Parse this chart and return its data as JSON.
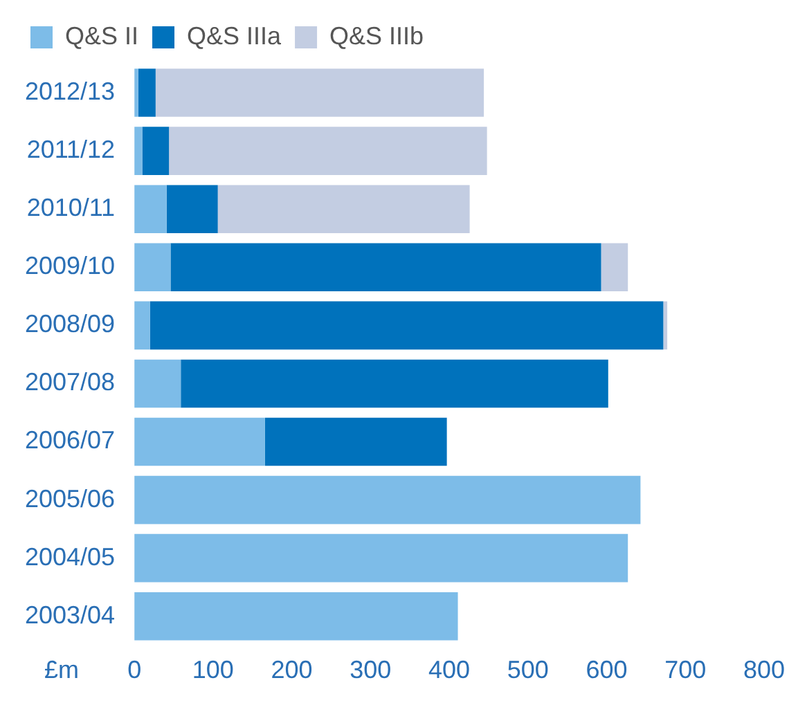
{
  "chart_data": {
    "type": "bar",
    "orientation": "horizontal",
    "stacked": true,
    "xlabel": "£m",
    "categories": [
      "2012/13",
      "2011/12",
      "2010/11",
      "2009/10",
      "2008/09",
      "2007/08",
      "2006/07",
      "2005/06",
      "2004/05",
      "2003/04"
    ],
    "series": [
      {
        "name": "Q&S II",
        "color": "#7dbce8",
        "values": [
          5,
          10,
          41,
          46,
          20,
          59,
          166,
          643,
          627,
          411
        ]
      },
      {
        "name": "Q&S IIIa",
        "color": "#0072bc",
        "values": [
          22,
          34,
          65,
          547,
          652,
          543,
          231,
          null,
          null,
          null
        ]
      },
      {
        "name": "Q&S IIIb",
        "color": "#c3cde2",
        "values": [
          417,
          404,
          320,
          34,
          5,
          null,
          null,
          null,
          null,
          null
        ]
      }
    ],
    "xlim": [
      0,
      800
    ],
    "xticks": [
      0,
      100,
      200,
      300,
      400,
      500,
      600,
      700,
      800
    ],
    "grid": false,
    "legend": "top left"
  }
}
